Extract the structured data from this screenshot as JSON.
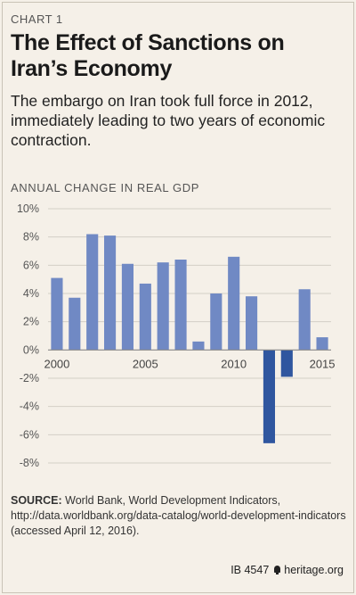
{
  "header": {
    "kicker": "CHART 1",
    "title": "The Effect of Sanctions on Iran’s Economy",
    "subtitle": "The embargo on Iran took full force in 2012, immediately leading to two years of economic contraction."
  },
  "axis_title": "ANNUAL CHANGE IN REAL GDP",
  "source": {
    "label": "SOURCE:",
    "text": "World Bank, World Development Indicators, http://data.worldbank.org/data-catalog/world-development-indicators (accessed April 12, 2016)."
  },
  "footer": {
    "report_id": "IB 4547",
    "site": "heritage.org"
  },
  "colors": {
    "bar": "#7089c4",
    "bar_highlight": "#2f569f",
    "grid": "#d3cfc6",
    "axis": "#888888"
  },
  "chart_data": {
    "type": "bar",
    "title": "The Effect of Sanctions on Iran’s Economy",
    "ylabel": "ANNUAL CHANGE IN REAL GDP",
    "x": [
      2000,
      2001,
      2002,
      2003,
      2004,
      2005,
      2006,
      2007,
      2008,
      2009,
      2010,
      2011,
      2012,
      2013,
      2014,
      2015
    ],
    "values": [
      5.1,
      3.7,
      8.2,
      8.1,
      6.1,
      4.7,
      6.2,
      6.4,
      0.6,
      4.0,
      6.6,
      3.8,
      -6.6,
      -1.9,
      4.3,
      0.9
    ],
    "highlight": [
      2012,
      2013
    ],
    "ylim": [
      -8,
      10
    ],
    "yticks": [
      10,
      8,
      6,
      4,
      2,
      0,
      -2,
      -4,
      -6,
      -8
    ],
    "ytick_labels": [
      "10%",
      "8%",
      "6%",
      "4%",
      "2%",
      "0%",
      "-2%",
      "-4%",
      "-6%",
      "-8%"
    ],
    "xticks": [
      2000,
      2005,
      2010,
      2015
    ],
    "grid": true
  }
}
